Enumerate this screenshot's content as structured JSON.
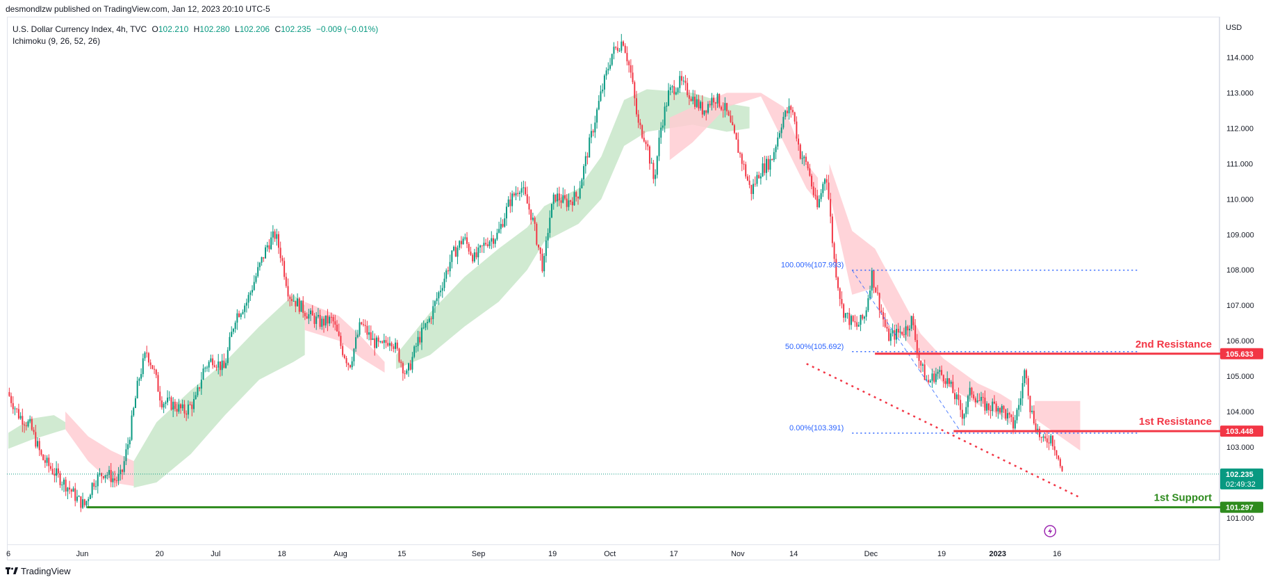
{
  "header": {
    "published": "desmondlzw published on TradingView.com, Jan 12, 2023 20:10 UTC-5"
  },
  "legend": {
    "symbol": "U.S. Dollar Currency Index, 4h, TVC",
    "open_label": "O",
    "open": "102.210",
    "high_label": "H",
    "high": "102.280",
    "low_label": "L",
    "low": "102.206",
    "close_label": "C",
    "close": "102.235",
    "change": "−0.009 (−0.01%)",
    "indicator": "Ichimoku (9, 26, 52, 26)"
  },
  "footer": {
    "brand": "TradingView"
  },
  "colors": {
    "up": "#089981",
    "down": "#f23645",
    "resistance": "#f23645",
    "support": "#2e8b1e",
    "fib": "#2962ff",
    "cloud_bull": "#c8e6c9",
    "cloud_bear": "#ffcdd2"
  },
  "chart_data": {
    "type": "candlestick",
    "currency": "USD",
    "y_range": [
      100.25,
      115.15
    ],
    "y_ticks": [
      "114.000",
      "113.000",
      "112.000",
      "111.000",
      "110.000",
      "109.000",
      "108.000",
      "107.000",
      "106.000",
      "105.000",
      "104.000",
      "103.000",
      "101.000"
    ],
    "x_ticks": [
      {
        "label": "6",
        "t": 0.0
      },
      {
        "label": "Jun",
        "t": 0.0649
      },
      {
        "label": "20",
        "t": 0.1327
      },
      {
        "label": "Jul",
        "t": 0.1818
      },
      {
        "label": "18",
        "t": 0.2399
      },
      {
        "label": "Aug",
        "t": 0.2913
      },
      {
        "label": "15",
        "t": 0.3451
      },
      {
        "label": "Sep",
        "t": 0.4123
      },
      {
        "label": "19",
        "t": 0.4772
      },
      {
        "label": "Oct",
        "t": 0.5275
      },
      {
        "label": "17",
        "t": 0.5836
      },
      {
        "label": "Nov",
        "t": 0.6397
      },
      {
        "label": "14",
        "t": 0.6887
      },
      {
        "label": "Dec",
        "t": 0.7565
      },
      {
        "label": "19",
        "t": 0.8185
      },
      {
        "label": "2023",
        "t": 0.8676
      },
      {
        "label": "16",
        "t": 0.9197
      }
    ],
    "price_path": [
      [
        0.0,
        104.55
      ],
      [
        0.01,
        103.9
      ],
      [
        0.02,
        103.6
      ],
      [
        0.03,
        102.7
      ],
      [
        0.042,
        102.25
      ],
      [
        0.055,
        101.8
      ],
      [
        0.062,
        101.5
      ],
      [
        0.068,
        101.35
      ],
      [
        0.075,
        102.0
      ],
      [
        0.085,
        102.3
      ],
      [
        0.095,
        102.05
      ],
      [
        0.1,
        102.2
      ],
      [
        0.107,
        103.3
      ],
      [
        0.115,
        104.9
      ],
      [
        0.122,
        105.7
      ],
      [
        0.128,
        105.2
      ],
      [
        0.135,
        104.3
      ],
      [
        0.145,
        104.2
      ],
      [
        0.155,
        104.0
      ],
      [
        0.165,
        104.3
      ],
      [
        0.172,
        105.2
      ],
      [
        0.18,
        105.5
      ],
      [
        0.19,
        105.2
      ],
      [
        0.2,
        106.7
      ],
      [
        0.21,
        107.1
      ],
      [
        0.22,
        108.0
      ],
      [
        0.228,
        108.7
      ],
      [
        0.235,
        109.0
      ],
      [
        0.24,
        108.4
      ],
      [
        0.247,
        107.3
      ],
      [
        0.256,
        107.0
      ],
      [
        0.265,
        106.7
      ],
      [
        0.275,
        106.5
      ],
      [
        0.285,
        106.6
      ],
      [
        0.293,
        105.8
      ],
      [
        0.3,
        105.3
      ],
      [
        0.31,
        106.5
      ],
      [
        0.32,
        106.0
      ],
      [
        0.328,
        105.8
      ],
      [
        0.336,
        106.1
      ],
      [
        0.343,
        105.6
      ],
      [
        0.35,
        105.0
      ],
      [
        0.36,
        106.0
      ],
      [
        0.37,
        106.6
      ],
      [
        0.38,
        107.5
      ],
      [
        0.39,
        108.4
      ],
      [
        0.4,
        108.9
      ],
      [
        0.41,
        108.3
      ],
      [
        0.42,
        108.8
      ],
      [
        0.43,
        109.0
      ],
      [
        0.44,
        109.9
      ],
      [
        0.45,
        110.4
      ],
      [
        0.46,
        109.5
      ],
      [
        0.47,
        108.0
      ],
      [
        0.475,
        109.4
      ],
      [
        0.48,
        110.1
      ],
      [
        0.49,
        109.9
      ],
      [
        0.5,
        110.1
      ],
      [
        0.51,
        111.5
      ],
      [
        0.52,
        112.9
      ],
      [
        0.53,
        114.1
      ],
      [
        0.54,
        114.5
      ],
      [
        0.547,
        113.5
      ],
      [
        0.553,
        112.1
      ],
      [
        0.56,
        111.7
      ],
      [
        0.567,
        110.5
      ],
      [
        0.573,
        112.0
      ],
      [
        0.58,
        113.0
      ],
      [
        0.59,
        113.3
      ],
      [
        0.6,
        112.9
      ],
      [
        0.61,
        112.5
      ],
      [
        0.62,
        112.9
      ],
      [
        0.63,
        112.5
      ],
      [
        0.636,
        111.9
      ],
      [
        0.645,
        111.0
      ],
      [
        0.652,
        110.2
      ],
      [
        0.66,
        110.8
      ],
      [
        0.67,
        111.1
      ],
      [
        0.68,
        112.3
      ],
      [
        0.688,
        112.6
      ],
      [
        0.695,
        111.3
      ],
      [
        0.702,
        110.9
      ],
      [
        0.71,
        109.7
      ],
      [
        0.718,
        110.8
      ],
      [
        0.725,
        108.3
      ],
      [
        0.732,
        106.9
      ],
      [
        0.738,
        106.6
      ],
      [
        0.745,
        106.4
      ],
      [
        0.752,
        106.7
      ],
      [
        0.758,
        107.9
      ],
      [
        0.765,
        107.0
      ],
      [
        0.772,
        106.1
      ],
      [
        0.78,
        106.2
      ],
      [
        0.787,
        106.3
      ],
      [
        0.793,
        106.6
      ],
      [
        0.8,
        105.4
      ],
      [
        0.807,
        104.8
      ],
      [
        0.815,
        105.1
      ],
      [
        0.822,
        105.0
      ],
      [
        0.83,
        104.5
      ],
      [
        0.838,
        103.9
      ],
      [
        0.845,
        104.6
      ],
      [
        0.852,
        104.3
      ],
      [
        0.86,
        104.1
      ],
      [
        0.867,
        104.2
      ],
      [
        0.874,
        104.0
      ],
      [
        0.882,
        103.6
      ],
      [
        0.888,
        104.3
      ],
      [
        0.893,
        105.3
      ],
      [
        0.897,
        104.1
      ],
      [
        0.902,
        103.6
      ],
      [
        0.908,
        103.1
      ],
      [
        0.915,
        103.3
      ],
      [
        0.92,
        102.9
      ],
      [
        0.925,
        102.24
      ]
    ],
    "cloud_segments": [
      {
        "kind": "bull",
        "pts": [
          [
            0.0,
            103.4,
            102.95
          ],
          [
            0.02,
            103.8,
            103.2
          ],
          [
            0.04,
            103.9,
            103.4
          ],
          [
            0.05,
            103.7,
            103.5
          ]
        ]
      },
      {
        "kind": "bear",
        "pts": [
          [
            0.05,
            104.0,
            103.5
          ],
          [
            0.07,
            103.3,
            102.6
          ],
          [
            0.09,
            102.9,
            102.0
          ],
          [
            0.11,
            102.6,
            101.9
          ]
        ]
      },
      {
        "kind": "bull",
        "pts": [
          [
            0.11,
            102.6,
            101.85
          ],
          [
            0.13,
            103.7,
            102.0
          ],
          [
            0.16,
            104.6,
            102.8
          ],
          [
            0.19,
            105.4,
            103.9
          ],
          [
            0.22,
            106.4,
            104.9
          ],
          [
            0.25,
            107.3,
            105.4
          ],
          [
            0.26,
            107.0,
            105.6
          ]
        ]
      },
      {
        "kind": "bear",
        "pts": [
          [
            0.26,
            107.1,
            106.3
          ],
          [
            0.29,
            106.7,
            106.0
          ],
          [
            0.31,
            106.1,
            105.5
          ],
          [
            0.33,
            105.4,
            105.1
          ]
        ]
      },
      {
        "kind": "bull",
        "pts": [
          [
            0.34,
            105.6,
            105.2
          ],
          [
            0.37,
            106.8,
            105.6
          ],
          [
            0.4,
            107.8,
            106.4
          ],
          [
            0.43,
            108.6,
            107.1
          ],
          [
            0.455,
            109.2,
            108.0
          ],
          [
            0.47,
            109.8,
            108.8
          ],
          [
            0.5,
            110.3,
            109.3
          ],
          [
            0.52,
            111.2,
            110.0
          ],
          [
            0.54,
            112.8,
            111.5
          ],
          [
            0.56,
            113.1,
            111.9
          ],
          [
            0.6,
            113.0,
            112.1
          ],
          [
            0.63,
            112.7,
            111.9
          ],
          [
            0.65,
            112.6,
            112.0
          ]
        ]
      },
      {
        "kind": "bear",
        "pts": [
          [
            0.58,
            112.3,
            111.1
          ],
          [
            0.6,
            112.6,
            111.6
          ],
          [
            0.63,
            113.0,
            112.6
          ],
          [
            0.66,
            113.0,
            112.9
          ],
          [
            0.68,
            112.6,
            111.6
          ],
          [
            0.7,
            111.0,
            110.3
          ],
          [
            0.71,
            110.6,
            109.9
          ]
        ]
      },
      {
        "kind": "bear",
        "pts": [
          [
            0.72,
            111.0,
            110.2
          ],
          [
            0.74,
            109.1,
            107.3
          ],
          [
            0.76,
            108.6,
            107.5
          ],
          [
            0.78,
            107.4,
            106.3
          ],
          [
            0.8,
            106.2,
            105.5
          ],
          [
            0.82,
            105.5,
            104.8
          ],
          [
            0.85,
            104.8,
            104.2
          ],
          [
            0.87,
            104.5,
            103.9
          ],
          [
            0.88,
            104.3,
            103.6
          ]
        ]
      },
      {
        "kind": "bear",
        "pts": [
          [
            0.9,
            104.3,
            103.8
          ],
          [
            0.94,
            104.3,
            102.9
          ]
        ]
      }
    ],
    "annotations": {
      "resistance_2": {
        "label": "2nd Resistance",
        "value": 105.633,
        "value_label": "105.633",
        "t_start": 0.76
      },
      "resistance_1": {
        "label": "1st Resistance",
        "value": 103.448,
        "value_label": "103.448",
        "t_start": 0.829
      },
      "support_1": {
        "label": "1st Support",
        "value": 101.297,
        "value_label": "101.297",
        "t_start": 0.069
      },
      "last_price": {
        "value": 102.235,
        "value_label": "102.235",
        "countdown": "02:49:32"
      },
      "fib_levels": [
        {
          "label": "100.00%(107.993)",
          "value": 107.993
        },
        {
          "label": "50.00%(105.692)",
          "value": 105.692
        },
        {
          "label": "0.00%(103.391)",
          "value": 103.391
        }
      ],
      "fib_t_start": 0.74,
      "fib_t_end": 0.991,
      "fib_diag_from": [
        0.74,
        107.993
      ],
      "fib_diag_to": [
        0.836,
        103.391
      ],
      "trend_from": [
        0.7,
        105.35
      ],
      "trend_to": [
        0.94,
        101.57
      ]
    }
  }
}
